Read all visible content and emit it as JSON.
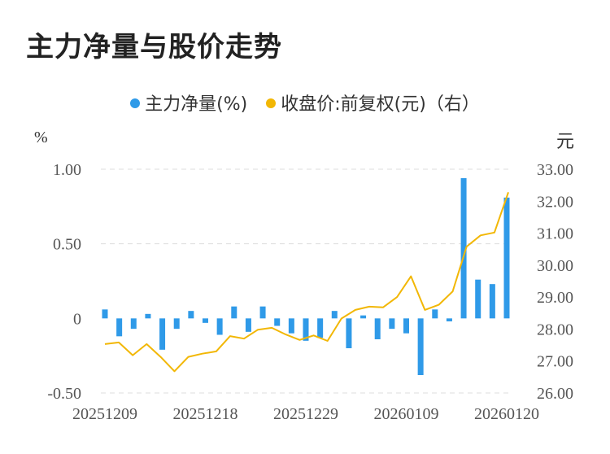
{
  "title": "主力净量与股价走势",
  "legend": [
    {
      "label": "主力净量(%)",
      "color": "#2f9ae8"
    },
    {
      "label": "收盘价:前复权(元)（右）",
      "color": "#f2b705"
    }
  ],
  "colors": {
    "bar": "#2f9ae8",
    "line": "#f2b705",
    "grid": "#dddddd"
  },
  "chart_data": {
    "type": "bar+line",
    "left_unit": "%",
    "right_unit": "元",
    "left_ylim": [
      -0.5,
      1.0
    ],
    "right_ylim": [
      26.0,
      33.0
    ],
    "left_ticks": [
      "1.00",
      "0.50",
      "0",
      "-0.50"
    ],
    "right_ticks": [
      "33.00",
      "32.00",
      "31.00",
      "30.00",
      "29.00",
      "28.00",
      "27.00",
      "26.00"
    ],
    "x_tick_labels": [
      "20251209",
      "20251218",
      "20251229",
      "20260109",
      "20260120"
    ],
    "grid": true,
    "series": [
      {
        "name": "主力净量(%)",
        "axis": "left",
        "type": "bar",
        "values": [
          0.06,
          -0.12,
          -0.07,
          0.03,
          -0.21,
          -0.07,
          0.05,
          -0.03,
          -0.11,
          0.08,
          -0.09,
          0.08,
          -0.05,
          -0.1,
          -0.15,
          -0.13,
          0.05,
          -0.2,
          0.02,
          -0.14,
          -0.07,
          -0.1,
          -0.38,
          0.06,
          -0.02,
          0.94,
          0.26,
          0.23,
          0.81
        ]
      },
      {
        "name": "收盘价:前复权(元)（右）",
        "axis": "right",
        "type": "line",
        "values": [
          27.53,
          27.58,
          27.18,
          27.53,
          27.13,
          26.68,
          27.13,
          27.23,
          27.3,
          27.78,
          27.7,
          27.98,
          28.04,
          27.83,
          27.66,
          27.8,
          27.63,
          28.33,
          28.6,
          28.7,
          28.68,
          29.0,
          29.65,
          28.6,
          28.76,
          29.18,
          30.58,
          30.93,
          31.02,
          32.28
        ]
      }
    ]
  }
}
